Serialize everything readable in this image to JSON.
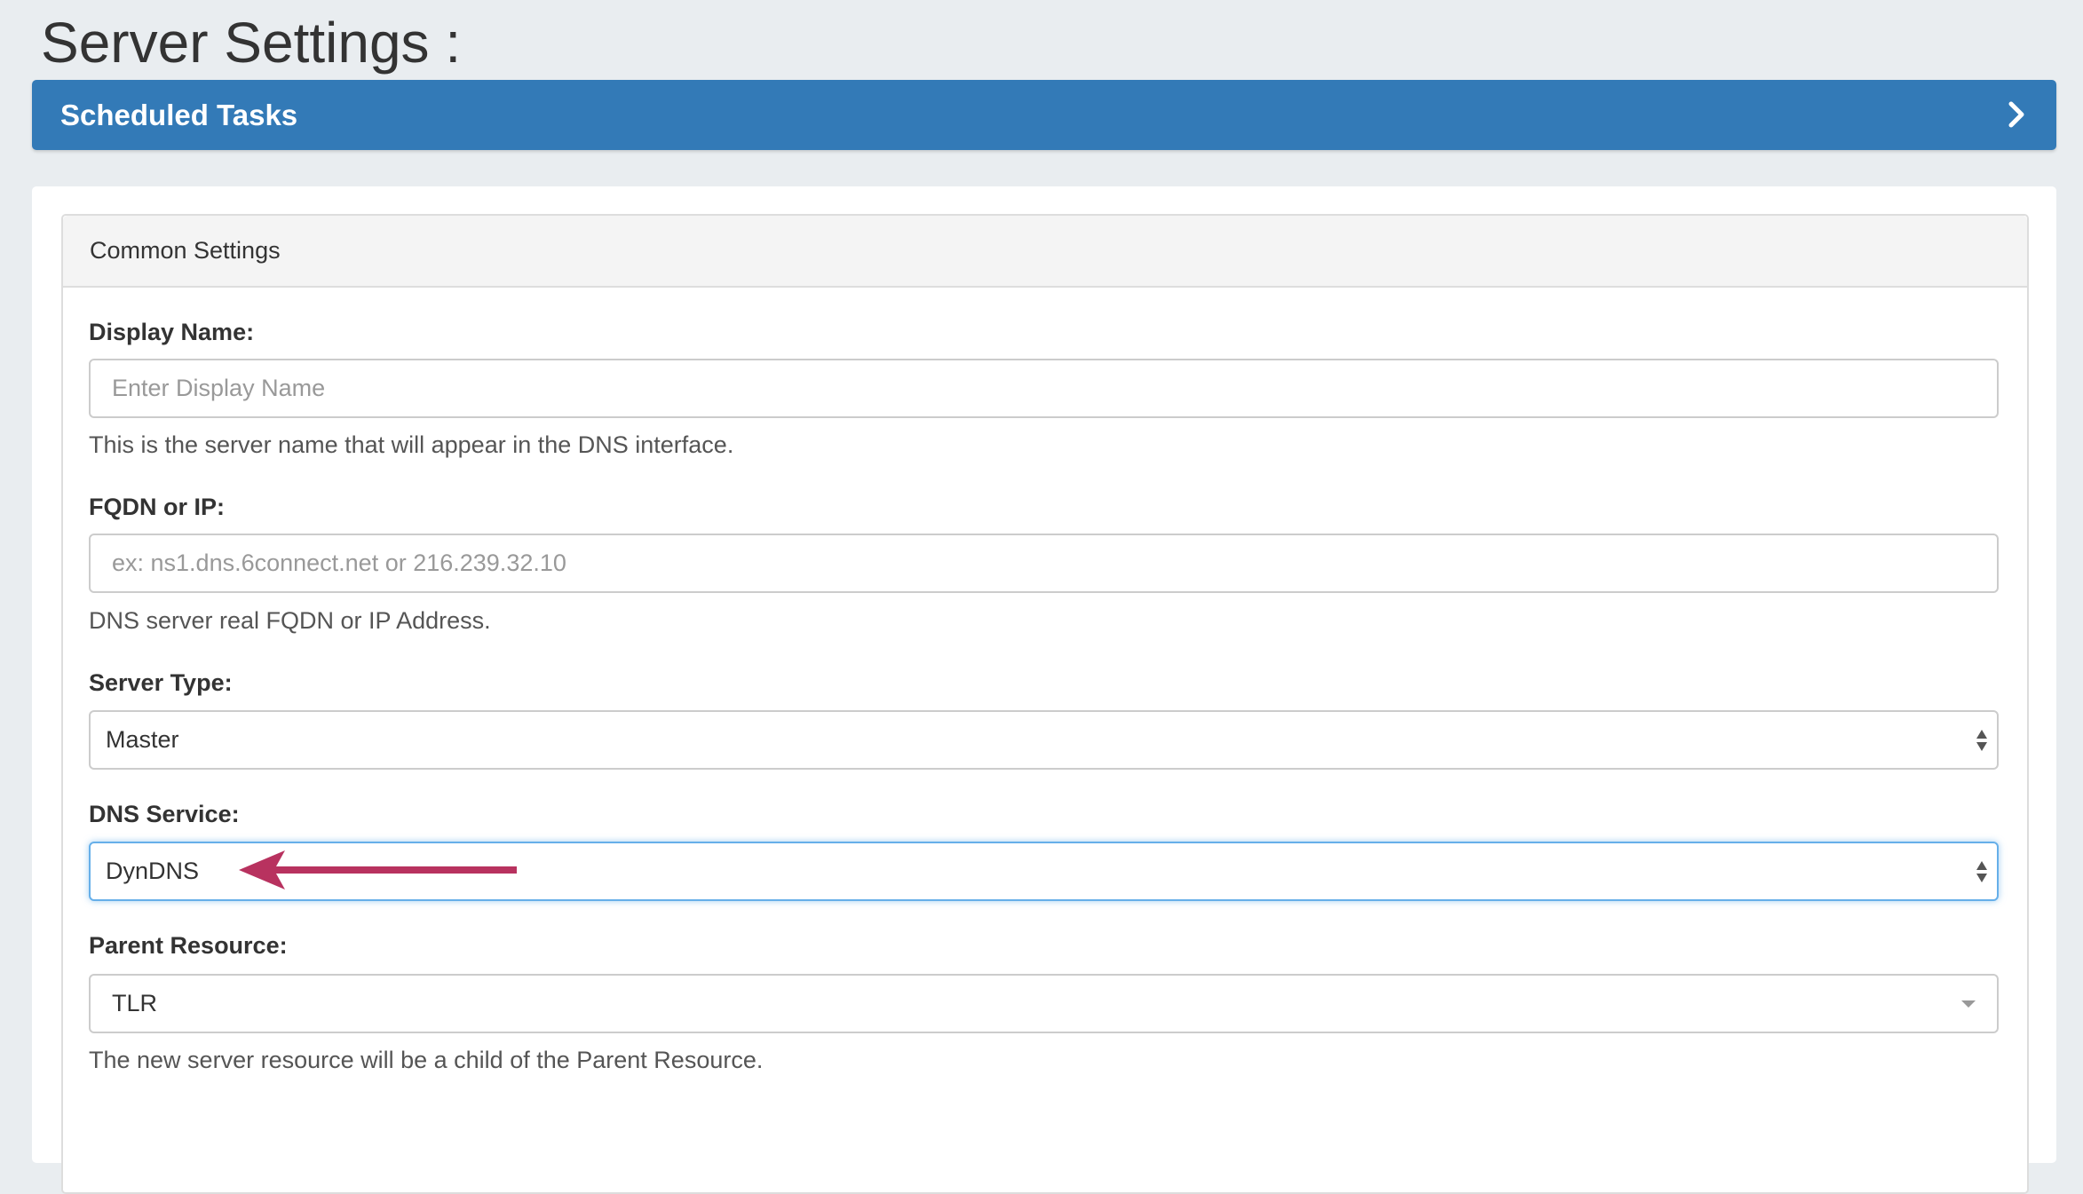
{
  "page": {
    "title": "Server Settings :"
  },
  "scheduled_tasks": {
    "label": "Scheduled Tasks",
    "icon": "chevron-right-icon",
    "color": "#337ab7"
  },
  "common_settings": {
    "heading": "Common Settings",
    "display_name": {
      "label": "Display Name:",
      "placeholder": "Enter Display Name",
      "value": "",
      "help": "This is the server name that will appear in the DNS interface."
    },
    "fqdn": {
      "label": "FQDN or IP:",
      "placeholder": "ex: ns1.dns.6connect.net or 216.239.32.10",
      "value": "",
      "help": "DNS server real FQDN or IP Address."
    },
    "server_type": {
      "label": "Server Type:",
      "value": "Master"
    },
    "dns_service": {
      "label": "DNS Service:",
      "value": "DynDNS",
      "focused": true
    },
    "parent_resource": {
      "label": "Parent Resource:",
      "value": "TLR",
      "help": "The new server resource will be a child of the Parent Resource."
    }
  },
  "annotation": {
    "icon": "arrow-left-icon",
    "color": "#b8325f"
  }
}
